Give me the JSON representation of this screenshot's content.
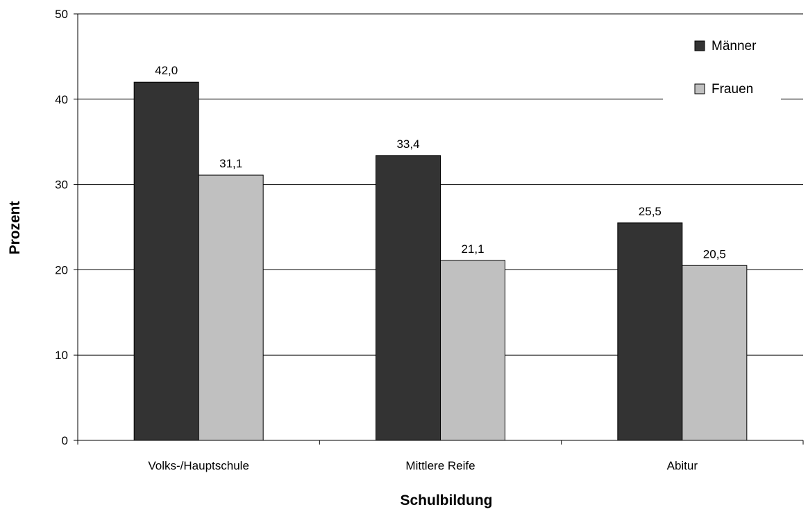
{
  "chart_data": {
    "type": "bar",
    "title": "",
    "xlabel": "Schulbildung",
    "ylabel": "Prozent",
    "categories": [
      "Volks-/Hauptschule",
      "Mittlere Reife",
      "Abitur"
    ],
    "series": [
      {
        "name": "Männer",
        "values": [
          42.0,
          33.4,
          25.5
        ],
        "labels": [
          "42,0",
          "33,4",
          "25,5"
        ],
        "color": "#333333"
      },
      {
        "name": "Frauen",
        "values": [
          31.1,
          21.1,
          20.5
        ],
        "labels": [
          "31,1",
          "21,1",
          "20,5"
        ],
        "color": "#c0c0c0"
      }
    ],
    "ylim": [
      0,
      50
    ],
    "yticks": [
      0,
      10,
      20,
      30,
      40,
      50
    ],
    "ytick_labels": [
      "0",
      "10",
      "20",
      "30",
      "40",
      "50"
    ],
    "grid": true,
    "legend_position": "top-right"
  }
}
